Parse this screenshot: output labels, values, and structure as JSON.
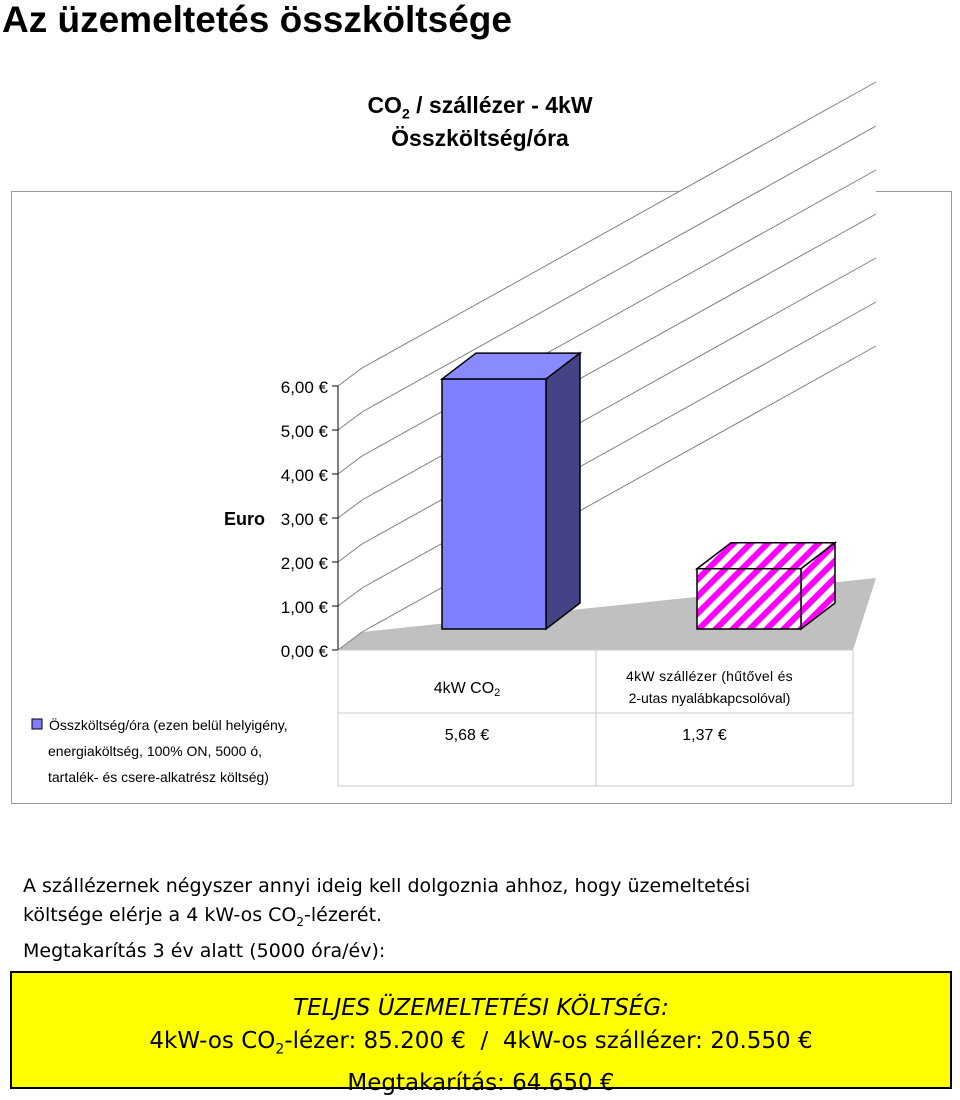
{
  "page": {
    "title": "Az üzemeltetés összköltsége"
  },
  "chart_data": {
    "type": "bar",
    "title_line1": {
      "prefix": "CO",
      "sub": "2",
      "rest": " / szállézer - 4kW"
    },
    "title_line2": "Összköltség/óra",
    "ylabel": "Euro",
    "ylim": [
      0,
      6
    ],
    "yticks": [
      "0,00 €",
      "1,00 €",
      "2,00 €",
      "3,00 €",
      "4,00 €",
      "5,00 €",
      "6,00 €"
    ],
    "categories": [
      {
        "label_parts": [
          "4kW CO",
          "2"
        ],
        "label_format": "subscript"
      },
      {
        "label_parts": [
          "4kW szállézer (hűtővel és",
          "2-utas nyalábkapcsolóval)"
        ],
        "label_format": "two-line"
      }
    ],
    "series": [
      {
        "name": "Összköltség/óra (ezen belül helyigény, energiaköltség, 100% ON, 5000 ó, tartalék- és csere-alkatrész költség)",
        "legend_lines": [
          "Összköltség/óra (ezen belül helyigény,",
          "energiaköltség, 100% ON, 5000 ó,",
          "tartalék- és csere-alkatrész költség)"
        ],
        "values": [
          5.68,
          1.37
        ],
        "value_labels": [
          "5,68 €",
          "1,37 €"
        ]
      }
    ],
    "bar_styles": [
      {
        "fill": "#8080ff",
        "side": "#434385",
        "top": "#8a8aff",
        "pattern": "solid"
      },
      {
        "fill": "#ff00ff",
        "side": "#ff00ff",
        "top": "#ff00ff",
        "pattern": "diagonal-stripes"
      }
    ],
    "grid": true,
    "legend_placement": "bottom-left",
    "data_table": true
  },
  "summary": {
    "line1": "A szállézernek négyszer annyi ideig kell dolgoznia ahhoz, hogy üzemeltetési",
    "line2_prefix": "költsége elérje a 4 kW-os CO",
    "line2_sub": "2",
    "line2_suffix": "-lézerét.",
    "line3": "Megtakarítás 3 év alatt (5000 óra/év):"
  },
  "totals": {
    "title": "TELJES ÜZEMELTETÉSI KÖLTSÉG:",
    "line2_prefix": "4kW-os CO",
    "line2_sub": "2",
    "line2_suffix": "-lézer: 85.200 €  /  4kW-os szállézer: 20.550 €",
    "line3": "Megtakarítás: 64.650 €"
  }
}
